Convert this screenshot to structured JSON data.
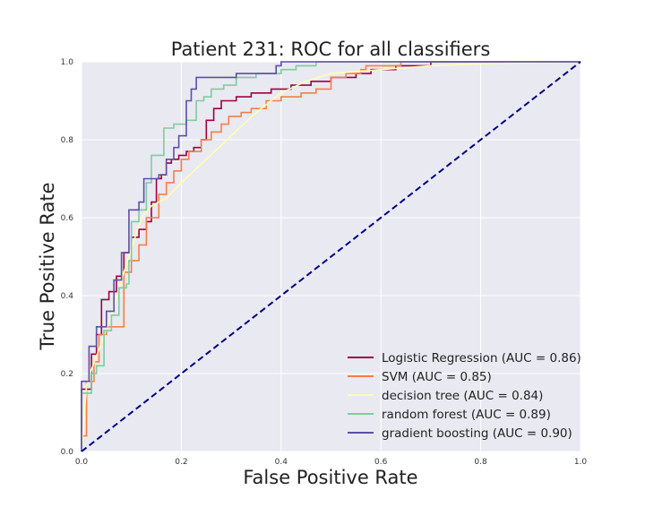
{
  "chart_data": {
    "type": "line",
    "title": "Patient 231: ROC for all classifiers",
    "xlabel": "False Positive Rate",
    "ylabel": "True Positive Rate",
    "xlim": [
      0.0,
      1.0
    ],
    "ylim": [
      0.0,
      1.0
    ],
    "xticks": [
      "0.0",
      "0.2",
      "0.4",
      "0.6",
      "0.8",
      "1.0"
    ],
    "yticks": [
      "0.0",
      "0.2",
      "0.4",
      "0.6",
      "0.8",
      "1.0"
    ],
    "grid": true,
    "legend_position": "lower-right",
    "background_color": "#e9e9f1",
    "series": [
      {
        "name": "Logistic Regression (AUC = 0.86)",
        "color": "#9e0142",
        "step": true,
        "points": [
          [
            0,
            0
          ],
          [
            0,
            0.16
          ],
          [
            0.02,
            0.16
          ],
          [
            0.02,
            0.25
          ],
          [
            0.03,
            0.25
          ],
          [
            0.03,
            0.3
          ],
          [
            0.04,
            0.3
          ],
          [
            0.04,
            0.39
          ],
          [
            0.055,
            0.39
          ],
          [
            0.055,
            0.41
          ],
          [
            0.07,
            0.41
          ],
          [
            0.07,
            0.45
          ],
          [
            0.085,
            0.45
          ],
          [
            0.085,
            0.51
          ],
          [
            0.1,
            0.51
          ],
          [
            0.1,
            0.55
          ],
          [
            0.115,
            0.55
          ],
          [
            0.115,
            0.57
          ],
          [
            0.13,
            0.57
          ],
          [
            0.13,
            0.59
          ],
          [
            0.14,
            0.59
          ],
          [
            0.14,
            0.64
          ],
          [
            0.15,
            0.64
          ],
          [
            0.15,
            0.7
          ],
          [
            0.16,
            0.7
          ],
          [
            0.16,
            0.71
          ],
          [
            0.17,
            0.71
          ],
          [
            0.17,
            0.74
          ],
          [
            0.18,
            0.74
          ],
          [
            0.18,
            0.75
          ],
          [
            0.195,
            0.75
          ],
          [
            0.195,
            0.76
          ],
          [
            0.21,
            0.76
          ],
          [
            0.21,
            0.77
          ],
          [
            0.225,
            0.77
          ],
          [
            0.225,
            0.78
          ],
          [
            0.24,
            0.78
          ],
          [
            0.24,
            0.8
          ],
          [
            0.25,
            0.8
          ],
          [
            0.25,
            0.85
          ],
          [
            0.265,
            0.85
          ],
          [
            0.265,
            0.88
          ],
          [
            0.28,
            0.88
          ],
          [
            0.28,
            0.9
          ],
          [
            0.31,
            0.9
          ],
          [
            0.31,
            0.91
          ],
          [
            0.34,
            0.91
          ],
          [
            0.34,
            0.92
          ],
          [
            0.38,
            0.92
          ],
          [
            0.38,
            0.93
          ],
          [
            0.42,
            0.93
          ],
          [
            0.42,
            0.94
          ],
          [
            0.46,
            0.94
          ],
          [
            0.46,
            0.95
          ],
          [
            0.5,
            0.95
          ],
          [
            0.5,
            0.96
          ],
          [
            0.55,
            0.96
          ],
          [
            0.55,
            0.97
          ],
          [
            0.58,
            0.97
          ],
          [
            0.58,
            0.98
          ],
          [
            0.63,
            0.98
          ],
          [
            0.63,
            0.99
          ],
          [
            0.7,
            0.99
          ],
          [
            0.7,
            1.0
          ],
          [
            1.0,
            1.0
          ]
        ]
      },
      {
        "name": "SVM (AUC = 0.85)",
        "color": "#f57f45",
        "step": true,
        "points": [
          [
            0,
            0
          ],
          [
            0,
            0.04
          ],
          [
            0.01,
            0.04
          ],
          [
            0.01,
            0.18
          ],
          [
            0.025,
            0.18
          ],
          [
            0.025,
            0.23
          ],
          [
            0.035,
            0.23
          ],
          [
            0.035,
            0.3
          ],
          [
            0.05,
            0.3
          ],
          [
            0.05,
            0.32
          ],
          [
            0.085,
            0.32
          ],
          [
            0.085,
            0.46
          ],
          [
            0.1,
            0.46
          ],
          [
            0.1,
            0.49
          ],
          [
            0.115,
            0.49
          ],
          [
            0.115,
            0.53
          ],
          [
            0.13,
            0.53
          ],
          [
            0.13,
            0.6
          ],
          [
            0.155,
            0.6
          ],
          [
            0.155,
            0.66
          ],
          [
            0.17,
            0.66
          ],
          [
            0.17,
            0.69
          ],
          [
            0.185,
            0.69
          ],
          [
            0.185,
            0.72
          ],
          [
            0.2,
            0.72
          ],
          [
            0.2,
            0.75
          ],
          [
            0.215,
            0.75
          ],
          [
            0.215,
            0.77
          ],
          [
            0.24,
            0.77
          ],
          [
            0.24,
            0.8
          ],
          [
            0.26,
            0.8
          ],
          [
            0.26,
            0.82
          ],
          [
            0.28,
            0.82
          ],
          [
            0.28,
            0.84
          ],
          [
            0.295,
            0.84
          ],
          [
            0.295,
            0.86
          ],
          [
            0.32,
            0.86
          ],
          [
            0.32,
            0.87
          ],
          [
            0.34,
            0.87
          ],
          [
            0.34,
            0.88
          ],
          [
            0.37,
            0.88
          ],
          [
            0.37,
            0.9
          ],
          [
            0.4,
            0.9
          ],
          [
            0.4,
            0.91
          ],
          [
            0.44,
            0.91
          ],
          [
            0.44,
            0.92
          ],
          [
            0.47,
            0.92
          ],
          [
            0.47,
            0.93
          ],
          [
            0.5,
            0.93
          ],
          [
            0.5,
            0.96
          ],
          [
            0.53,
            0.96
          ],
          [
            0.53,
            0.97
          ],
          [
            0.56,
            0.97
          ],
          [
            0.56,
            0.98
          ],
          [
            0.57,
            0.98
          ],
          [
            0.57,
            0.99
          ],
          [
            0.64,
            0.99
          ],
          [
            0.64,
            1.0
          ],
          [
            1.0,
            1.0
          ]
        ]
      },
      {
        "name": "decision tree (AUC = 0.84)",
        "color": "#fefeb4",
        "step": false,
        "points": [
          [
            0,
            0
          ],
          [
            0.01,
            0.17
          ],
          [
            0.02,
            0.21
          ],
          [
            0.04,
            0.28
          ],
          [
            0.06,
            0.35
          ],
          [
            0.08,
            0.44
          ],
          [
            0.1,
            0.52
          ],
          [
            0.12,
            0.6
          ],
          [
            0.14,
            0.63
          ],
          [
            0.17,
            0.65
          ],
          [
            0.2,
            0.69
          ],
          [
            0.25,
            0.75
          ],
          [
            0.3,
            0.81
          ],
          [
            0.35,
            0.87
          ],
          [
            0.4,
            0.92
          ],
          [
            0.45,
            0.95
          ],
          [
            0.5,
            0.97
          ],
          [
            0.6,
            0.98
          ],
          [
            0.7,
            0.99
          ],
          [
            0.8,
            0.995
          ],
          [
            1.0,
            1.0
          ]
        ]
      },
      {
        "name": "random forest (AUC = 0.89)",
        "color": "#7fcc9e",
        "step": true,
        "points": [
          [
            0,
            0
          ],
          [
            0,
            0.15
          ],
          [
            0.02,
            0.15
          ],
          [
            0.02,
            0.2
          ],
          [
            0.03,
            0.2
          ],
          [
            0.03,
            0.22
          ],
          [
            0.045,
            0.22
          ],
          [
            0.045,
            0.31
          ],
          [
            0.06,
            0.31
          ],
          [
            0.06,
            0.35
          ],
          [
            0.075,
            0.35
          ],
          [
            0.075,
            0.42
          ],
          [
            0.09,
            0.42
          ],
          [
            0.09,
            0.43
          ],
          [
            0.095,
            0.43
          ],
          [
            0.095,
            0.49
          ],
          [
            0.1,
            0.49
          ],
          [
            0.1,
            0.59
          ],
          [
            0.115,
            0.59
          ],
          [
            0.115,
            0.62
          ],
          [
            0.13,
            0.62
          ],
          [
            0.13,
            0.69
          ],
          [
            0.14,
            0.69
          ],
          [
            0.14,
            0.76
          ],
          [
            0.165,
            0.76
          ],
          [
            0.165,
            0.83
          ],
          [
            0.185,
            0.83
          ],
          [
            0.185,
            0.84
          ],
          [
            0.21,
            0.84
          ],
          [
            0.21,
            0.85
          ],
          [
            0.23,
            0.85
          ],
          [
            0.23,
            0.9
          ],
          [
            0.245,
            0.9
          ],
          [
            0.245,
            0.91
          ],
          [
            0.26,
            0.91
          ],
          [
            0.26,
            0.93
          ],
          [
            0.285,
            0.93
          ],
          [
            0.285,
            0.94
          ],
          [
            0.31,
            0.94
          ],
          [
            0.31,
            0.96
          ],
          [
            0.35,
            0.96
          ],
          [
            0.35,
            0.97
          ],
          [
            0.4,
            0.97
          ],
          [
            0.4,
            0.98
          ],
          [
            0.43,
            0.98
          ],
          [
            0.43,
            0.99
          ],
          [
            0.47,
            0.99
          ],
          [
            0.47,
            1.0
          ],
          [
            1.0,
            1.0
          ]
        ]
      },
      {
        "name": "gradient boosting (AUC = 0.90)",
        "color": "#5e4fa2",
        "step": true,
        "points": [
          [
            0,
            0
          ],
          [
            0,
            0.18
          ],
          [
            0.015,
            0.18
          ],
          [
            0.015,
            0.27
          ],
          [
            0.03,
            0.27
          ],
          [
            0.03,
            0.32
          ],
          [
            0.05,
            0.32
          ],
          [
            0.05,
            0.36
          ],
          [
            0.065,
            0.36
          ],
          [
            0.065,
            0.44
          ],
          [
            0.08,
            0.44
          ],
          [
            0.08,
            0.51
          ],
          [
            0.095,
            0.51
          ],
          [
            0.095,
            0.62
          ],
          [
            0.115,
            0.62
          ],
          [
            0.115,
            0.64
          ],
          [
            0.125,
            0.64
          ],
          [
            0.125,
            0.7
          ],
          [
            0.155,
            0.7
          ],
          [
            0.155,
            0.71
          ],
          [
            0.17,
            0.71
          ],
          [
            0.17,
            0.75
          ],
          [
            0.185,
            0.75
          ],
          [
            0.185,
            0.78
          ],
          [
            0.195,
            0.78
          ],
          [
            0.195,
            0.81
          ],
          [
            0.21,
            0.81
          ],
          [
            0.21,
            0.9
          ],
          [
            0.22,
            0.9
          ],
          [
            0.22,
            0.93
          ],
          [
            0.23,
            0.93
          ],
          [
            0.23,
            0.96
          ],
          [
            0.31,
            0.96
          ],
          [
            0.31,
            0.97
          ],
          [
            0.39,
            0.97
          ],
          [
            0.39,
            0.99
          ],
          [
            0.4,
            0.99
          ],
          [
            0.4,
            1.0
          ],
          [
            1.0,
            1.0
          ]
        ]
      }
    ],
    "reference_line": {
      "color": "#000080",
      "dashed": true,
      "points": [
        [
          0,
          0
        ],
        [
          1,
          1
        ]
      ]
    }
  }
}
